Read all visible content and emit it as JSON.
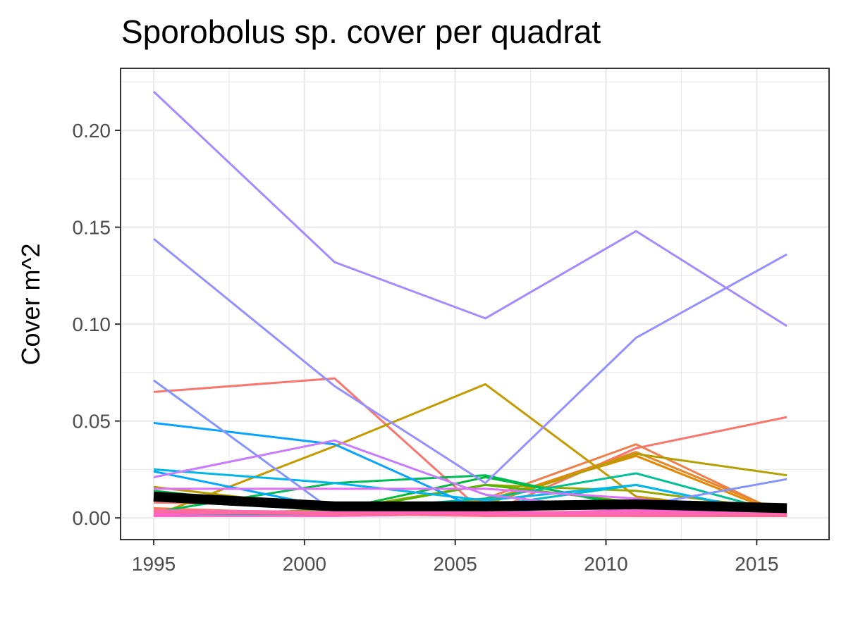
{
  "chart_data": {
    "type": "line",
    "title": "Sporobolus sp. cover per quadrat",
    "xlabel": "",
    "ylabel": "Cover m^2",
    "x": [
      1995,
      2001,
      2006,
      2011,
      2016
    ],
    "xlim": [
      1993.9,
      2017.4
    ],
    "ylim": [
      -0.0112,
      0.232
    ],
    "x_ticks": [
      1995,
      2000,
      2005,
      2010,
      2015
    ],
    "x_tick_labels": [
      "1995",
      "2000",
      "2005",
      "2010",
      "2015"
    ],
    "y_ticks": [
      0.0,
      0.05,
      0.1,
      0.15,
      0.2
    ],
    "y_tick_labels": [
      "0.00",
      "0.05",
      "0.10",
      "0.15",
      "0.20"
    ],
    "grid": true,
    "legend": "none",
    "series": [
      {
        "color": "#F8766D",
        "values": [
          0.065,
          0.072,
          0.002,
          0.036,
          0.052
        ]
      },
      {
        "color": "#F8766D",
        "values": [
          0.008,
          0.006,
          0.001,
          0.002,
          0.001
        ]
      },
      {
        "color": "#F07F4E",
        "values": [
          0.005,
          0.002,
          0.01,
          0.038,
          0.001
        ]
      },
      {
        "color": "#E88526",
        "values": [
          0.003,
          0.002,
          0.008,
          0.034,
          0.002
        ]
      },
      {
        "color": "#E58700",
        "values": [
          0.004,
          0.003,
          0.009,
          0.032,
          0.001
        ]
      },
      {
        "color": "#C49A00",
        "values": [
          0.001,
          0.037,
          0.069,
          0.011,
          0.002
        ]
      },
      {
        "color": "#B3A000",
        "values": [
          0.016,
          0.005,
          0.007,
          0.033,
          0.022
        ]
      },
      {
        "color": "#99A800",
        "values": [
          0.002,
          0.004,
          0.017,
          0.014,
          0.004
        ]
      },
      {
        "color": "#53B400",
        "values": [
          0.012,
          0.003,
          0.017,
          0.008,
          0.003
        ]
      },
      {
        "color": "#00BA38",
        "values": [
          0.014,
          0.004,
          0.021,
          0.006,
          0.002
        ]
      },
      {
        "color": "#00BC56",
        "values": [
          0.003,
          0.018,
          0.022,
          0.005,
          0.004
        ]
      },
      {
        "color": "#00C094",
        "values": [
          0.009,
          0.004,
          0.01,
          0.023,
          0.002
        ]
      },
      {
        "color": "#00BFC4",
        "values": [
          0.002,
          0.002,
          0.006,
          0.017,
          0.001
        ]
      },
      {
        "color": "#00B6EB",
        "values": [
          0.025,
          0.018,
          0.009,
          0.017,
          0.001
        ]
      },
      {
        "color": "#06A4FF",
        "values": [
          0.049,
          0.038,
          0.003,
          0.002,
          0.003
        ]
      },
      {
        "color": "#00A9FF",
        "values": [
          0.024,
          0.005,
          0.004,
          0.001,
          0.001
        ]
      },
      {
        "color": "#8494FF",
        "values": [
          0.071,
          0.003,
          0.004,
          0.006,
          0.02
        ]
      },
      {
        "color": "#9590FF",
        "values": [
          0.144,
          0.068,
          0.018,
          0.093,
          0.136
        ]
      },
      {
        "color": "#A58AFF",
        "values": [
          0.22,
          0.132,
          0.103,
          0.148,
          0.099
        ]
      },
      {
        "color": "#C77CFF",
        "values": [
          0.021,
          0.04,
          0.012,
          0.003,
          0.002
        ]
      },
      {
        "color": "#DF70F8",
        "values": [
          0.015,
          0.015,
          0.015,
          0.01,
          0.001
        ]
      },
      {
        "color": "#FB61D7",
        "values": [
          0.002,
          0.003,
          0.002,
          0.004,
          0.002
        ]
      },
      {
        "color": "#FF61C3",
        "values": [
          0.001,
          0.001,
          0.002,
          0.002,
          0.001
        ]
      },
      {
        "color": "#FF6C91",
        "values": [
          0.003,
          0.002,
          0.001,
          0.001,
          0.001
        ]
      },
      {
        "color": "#FF69B4",
        "values": [
          0.004,
          0.003,
          0.003,
          0.003,
          0.002
        ]
      },
      {
        "color": "#000000",
        "values": [
          0.011,
          0.006,
          0.006,
          0.007,
          0.005
        ],
        "emphasis": "mean"
      }
    ]
  }
}
